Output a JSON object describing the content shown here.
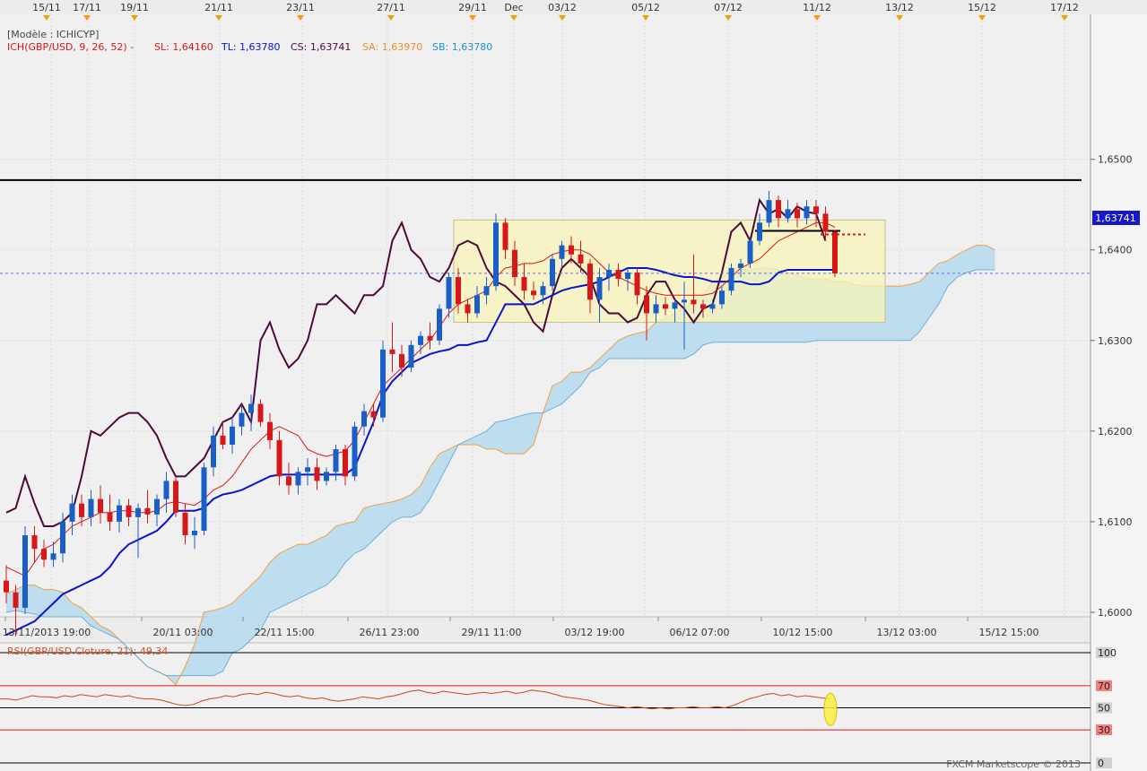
{
  "top_dates": [
    "15/11",
    "17/11",
    "19/11",
    "21/11",
    "23/11",
    "27/11",
    "29/11",
    "Dec",
    "03/12",
    "05/12",
    "07/12",
    "11/12",
    "13/12",
    "15/12",
    "17/12"
  ],
  "legend": {
    "model": "[Modèle : ICHICYP]",
    "ich": "ICH(GBP/USD, 9, 26, 52) -",
    "sl": "SL: 1,64160",
    "tl": "TL: 1,63780",
    "cs": "CS: 1,63741",
    "sa": "SA: 1,63970",
    "sb": "SB: 1,63780"
  },
  "price_label": "1,63741",
  "bottom_dates": [
    "13/11/2013 19:00",
    "20/11 03:00",
    "22/11 15:00",
    "26/11 23:00",
    "29/11 11:00",
    "03/12 19:00",
    "06/12 07:00",
    "10/12 15:00",
    "13/12 03:00",
    "15/12 15:00"
  ],
  "rsi_title": "RSI(GBP/USD.Cloture, 21): 49,34",
  "watermark": "FXCM Marketscope © 2013",
  "colors": {
    "bullish": "#1a5fc8",
    "bearish": "#d81818",
    "chikou": "#4a0a3a",
    "kijun": "#0a14c8",
    "tenkan": "#d81818",
    "span_a": "#f0a040",
    "cloud": "#b8dcef",
    "box": "#f8f4b8"
  },
  "chart_data": {
    "type": "candlestick",
    "title": "ICH(GBP/USD, 9, 26, 52)",
    "ylim": [
      1.5995,
      1.666
    ],
    "y_ticks": [
      "1,6500",
      "1,6400",
      "1,6300",
      "1,6200",
      "1,6100",
      "1,6000"
    ],
    "y_tick_values": [
      1.65,
      1.64,
      1.63,
      1.62,
      1.61,
      1.6
    ],
    "horizontal_levels": [
      1.6477,
      1.6421,
      1.63741
    ],
    "current_price": 1.63741,
    "candles": [
      {
        "o": 1.6035,
        "h": 1.6052,
        "l": 1.601,
        "c": 1.6022
      },
      {
        "o": 1.6022,
        "h": 1.603,
        "l": 1.5975,
        "c": 1.6005
      },
      {
        "o": 1.6005,
        "h": 1.6095,
        "l": 1.5998,
        "c": 1.6085
      },
      {
        "o": 1.6085,
        "h": 1.6095,
        "l": 1.6055,
        "c": 1.607
      },
      {
        "o": 1.607,
        "h": 1.608,
        "l": 1.605,
        "c": 1.6058
      },
      {
        "o": 1.6058,
        "h": 1.6078,
        "l": 1.605,
        "c": 1.6065
      },
      {
        "o": 1.6065,
        "h": 1.611,
        "l": 1.6055,
        "c": 1.61
      },
      {
        "o": 1.61,
        "h": 1.613,
        "l": 1.6085,
        "c": 1.612
      },
      {
        "o": 1.612,
        "h": 1.613,
        "l": 1.6095,
        "c": 1.6105
      },
      {
        "o": 1.6105,
        "h": 1.6135,
        "l": 1.6095,
        "c": 1.6125
      },
      {
        "o": 1.6125,
        "h": 1.614,
        "l": 1.6098,
        "c": 1.611
      },
      {
        "o": 1.611,
        "h": 1.613,
        "l": 1.609,
        "c": 1.61
      },
      {
        "o": 1.61,
        "h": 1.6125,
        "l": 1.6088,
        "c": 1.6118
      },
      {
        "o": 1.6118,
        "h": 1.6125,
        "l": 1.6095,
        "c": 1.6105
      },
      {
        "o": 1.6105,
        "h": 1.612,
        "l": 1.606,
        "c": 1.6115
      },
      {
        "o": 1.6115,
        "h": 1.6135,
        "l": 1.6098,
        "c": 1.6108
      },
      {
        "o": 1.6108,
        "h": 1.613,
        "l": 1.6095,
        "c": 1.6125
      },
      {
        "o": 1.6125,
        "h": 1.6155,
        "l": 1.611,
        "c": 1.6145
      },
      {
        "o": 1.6145,
        "h": 1.615,
        "l": 1.6105,
        "c": 1.611
      },
      {
        "o": 1.611,
        "h": 1.612,
        "l": 1.6075,
        "c": 1.6085
      },
      {
        "o": 1.6085,
        "h": 1.6105,
        "l": 1.607,
        "c": 1.609
      },
      {
        "o": 1.609,
        "h": 1.6165,
        "l": 1.6085,
        "c": 1.616
      },
      {
        "o": 1.616,
        "h": 1.6205,
        "l": 1.615,
        "c": 1.6195
      },
      {
        "o": 1.6195,
        "h": 1.621,
        "l": 1.618,
        "c": 1.6185
      },
      {
        "o": 1.6185,
        "h": 1.6215,
        "l": 1.6175,
        "c": 1.6205
      },
      {
        "o": 1.6205,
        "h": 1.623,
        "l": 1.6195,
        "c": 1.622
      },
      {
        "o": 1.622,
        "h": 1.624,
        "l": 1.62,
        "c": 1.623
      },
      {
        "o": 1.623,
        "h": 1.6235,
        "l": 1.6205,
        "c": 1.621
      },
      {
        "o": 1.621,
        "h": 1.622,
        "l": 1.618,
        "c": 1.619
      },
      {
        "o": 1.619,
        "h": 1.62,
        "l": 1.614,
        "c": 1.615
      },
      {
        "o": 1.615,
        "h": 1.6165,
        "l": 1.613,
        "c": 1.614
      },
      {
        "o": 1.614,
        "h": 1.616,
        "l": 1.613,
        "c": 1.6155
      },
      {
        "o": 1.6155,
        "h": 1.617,
        "l": 1.614,
        "c": 1.616
      },
      {
        "o": 1.616,
        "h": 1.617,
        "l": 1.6135,
        "c": 1.6145
      },
      {
        "o": 1.6145,
        "h": 1.616,
        "l": 1.614,
        "c": 1.6155
      },
      {
        "o": 1.6155,
        "h": 1.6185,
        "l": 1.6145,
        "c": 1.618
      },
      {
        "o": 1.618,
        "h": 1.6185,
        "l": 1.614,
        "c": 1.615
      },
      {
        "o": 1.615,
        "h": 1.621,
        "l": 1.6145,
        "c": 1.6205
      },
      {
        "o": 1.6205,
        "h": 1.623,
        "l": 1.6195,
        "c": 1.6222
      },
      {
        "o": 1.6222,
        "h": 1.623,
        "l": 1.6205,
        "c": 1.6215
      },
      {
        "o": 1.6215,
        "h": 1.63,
        "l": 1.621,
        "c": 1.629
      },
      {
        "o": 1.629,
        "h": 1.632,
        "l": 1.6265,
        "c": 1.6285
      },
      {
        "o": 1.6285,
        "h": 1.6295,
        "l": 1.626,
        "c": 1.627
      },
      {
        "o": 1.627,
        "h": 1.63,
        "l": 1.6265,
        "c": 1.6295
      },
      {
        "o": 1.6295,
        "h": 1.631,
        "l": 1.6285,
        "c": 1.6305
      },
      {
        "o": 1.6305,
        "h": 1.632,
        "l": 1.629,
        "c": 1.63
      },
      {
        "o": 1.63,
        "h": 1.634,
        "l": 1.6295,
        "c": 1.6335
      },
      {
        "o": 1.6335,
        "h": 1.6375,
        "l": 1.6325,
        "c": 1.637
      },
      {
        "o": 1.637,
        "h": 1.638,
        "l": 1.633,
        "c": 1.634
      },
      {
        "o": 1.634,
        "h": 1.6345,
        "l": 1.632,
        "c": 1.633
      },
      {
        "o": 1.633,
        "h": 1.636,
        "l": 1.6325,
        "c": 1.635
      },
      {
        "o": 1.635,
        "h": 1.637,
        "l": 1.634,
        "c": 1.636
      },
      {
        "o": 1.636,
        "h": 1.644,
        "l": 1.6355,
        "c": 1.643
      },
      {
        "o": 1.643,
        "h": 1.6435,
        "l": 1.639,
        "c": 1.64
      },
      {
        "o": 1.64,
        "h": 1.641,
        "l": 1.636,
        "c": 1.637
      },
      {
        "o": 1.637,
        "h": 1.6385,
        "l": 1.6345,
        "c": 1.6355
      },
      {
        "o": 1.6355,
        "h": 1.6365,
        "l": 1.6345,
        "c": 1.635
      },
      {
        "o": 1.635,
        "h": 1.6365,
        "l": 1.634,
        "c": 1.636
      },
      {
        "o": 1.636,
        "h": 1.6395,
        "l": 1.6355,
        "c": 1.639
      },
      {
        "o": 1.639,
        "h": 1.641,
        "l": 1.638,
        "c": 1.6405
      },
      {
        "o": 1.6405,
        "h": 1.6415,
        "l": 1.6385,
        "c": 1.6395
      },
      {
        "o": 1.6395,
        "h": 1.641,
        "l": 1.6375,
        "c": 1.6385
      },
      {
        "o": 1.6385,
        "h": 1.639,
        "l": 1.633,
        "c": 1.6345
      },
      {
        "o": 1.6345,
        "h": 1.638,
        "l": 1.632,
        "c": 1.637
      },
      {
        "o": 1.637,
        "h": 1.6385,
        "l": 1.6355,
        "c": 1.6378
      },
      {
        "o": 1.6378,
        "h": 1.6385,
        "l": 1.636,
        "c": 1.6368
      },
      {
        "o": 1.6368,
        "h": 1.638,
        "l": 1.6355,
        "c": 1.6375
      },
      {
        "o": 1.6375,
        "h": 1.638,
        "l": 1.634,
        "c": 1.635
      },
      {
        "o": 1.635,
        "h": 1.636,
        "l": 1.63,
        "c": 1.633
      },
      {
        "o": 1.633,
        "h": 1.635,
        "l": 1.632,
        "c": 1.634
      },
      {
        "o": 1.634,
        "h": 1.6348,
        "l": 1.6328,
        "c": 1.6335
      },
      {
        "o": 1.6335,
        "h": 1.6345,
        "l": 1.632,
        "c": 1.6342
      },
      {
        "o": 1.6342,
        "h": 1.6365,
        "l": 1.629,
        "c": 1.6345
      },
      {
        "o": 1.6345,
        "h": 1.6395,
        "l": 1.633,
        "c": 1.634
      },
      {
        "o": 1.634,
        "h": 1.6345,
        "l": 1.6325,
        "c": 1.6335
      },
      {
        "o": 1.6335,
        "h": 1.6345,
        "l": 1.633,
        "c": 1.634
      },
      {
        "o": 1.634,
        "h": 1.636,
        "l": 1.6335,
        "c": 1.6355
      },
      {
        "o": 1.6355,
        "h": 1.6385,
        "l": 1.635,
        "c": 1.638
      },
      {
        "o": 1.638,
        "h": 1.639,
        "l": 1.637,
        "c": 1.6385
      },
      {
        "o": 1.6385,
        "h": 1.6415,
        "l": 1.638,
        "c": 1.641
      },
      {
        "o": 1.641,
        "h": 1.644,
        "l": 1.6405,
        "c": 1.643
      },
      {
        "o": 1.643,
        "h": 1.6465,
        "l": 1.6425,
        "c": 1.6455
      },
      {
        "o": 1.6455,
        "h": 1.646,
        "l": 1.6425,
        "c": 1.6435
      },
      {
        "o": 1.6435,
        "h": 1.6455,
        "l": 1.643,
        "c": 1.6445
      },
      {
        "o": 1.6445,
        "h": 1.6452,
        "l": 1.6425,
        "c": 1.6435
      },
      {
        "o": 1.6435,
        "h": 1.6455,
        "l": 1.6428,
        "c": 1.6448
      },
      {
        "o": 1.6448,
        "h": 1.6455,
        "l": 1.6425,
        "c": 1.644
      },
      {
        "o": 1.644,
        "h": 1.6448,
        "l": 1.641,
        "c": 1.642
      },
      {
        "o": 1.642,
        "h": 1.6422,
        "l": 1.637,
        "c": 1.6374
      }
    ],
    "tenkan_sen": [
      1.605,
      1.6045,
      1.604,
      1.6055,
      1.607,
      1.6075,
      1.6085,
      1.6095,
      1.61,
      1.6105,
      1.611,
      1.611,
      1.6112,
      1.6112,
      1.611,
      1.611,
      1.6112,
      1.612,
      1.6122,
      1.612,
      1.6118,
      1.6125,
      1.6135,
      1.614,
      1.615,
      1.6165,
      1.618,
      1.619,
      1.62,
      1.6205,
      1.62,
      1.6195,
      1.618,
      1.6175,
      1.6172,
      1.6175,
      1.6178,
      1.619,
      1.621,
      1.623,
      1.625,
      1.626,
      1.627,
      1.628,
      1.629,
      1.63,
      1.6315,
      1.633,
      1.634,
      1.6345,
      1.635,
      1.6355,
      1.637,
      1.638,
      1.6382,
      1.6385,
      1.6385,
      1.6388,
      1.6395,
      1.6398,
      1.64,
      1.64,
      1.6395,
      1.6385,
      1.6375,
      1.637,
      1.6365,
      1.636,
      1.6355,
      1.6352,
      1.635,
      1.635,
      1.635,
      1.635,
      1.635,
      1.6352,
      1.636,
      1.637,
      1.638,
      1.6385,
      1.639,
      1.64,
      1.641,
      1.6415,
      1.642,
      1.6425,
      1.643,
      1.643,
      1.6425
    ],
    "kijun_sen": [
      1.5975,
      1.598,
      1.5985,
      1.599,
      1.6,
      1.601,
      1.602,
      1.6025,
      1.603,
      1.6035,
      1.604,
      1.605,
      1.6065,
      1.6075,
      1.608,
      1.6085,
      1.609,
      1.61,
      1.6112,
      1.6112,
      1.6112,
      1.6115,
      1.6125,
      1.613,
      1.6132,
      1.6135,
      1.614,
      1.6145,
      1.615,
      1.6152,
      1.6152,
      1.6152,
      1.6152,
      1.6152,
      1.6152,
      1.6152,
      1.6152,
      1.616,
      1.6185,
      1.621,
      1.624,
      1.6255,
      1.6265,
      1.6275,
      1.628,
      1.6285,
      1.6288,
      1.629,
      1.6295,
      1.6295,
      1.6298,
      1.63,
      1.632,
      1.634,
      1.634,
      1.634,
      1.634,
      1.6345,
      1.635,
      1.6355,
      1.6358,
      1.636,
      1.6362,
      1.6365,
      1.637,
      1.6375,
      1.638,
      1.638,
      1.638,
      1.6378,
      1.6375,
      1.6372,
      1.637,
      1.637,
      1.6368,
      1.6365,
      1.6365,
      1.6365,
      1.6365,
      1.6362,
      1.6362,
      1.6365,
      1.6375,
      1.6378,
      1.6378,
      1.6378,
      1.6378,
      1.6378,
      1.6378
    ],
    "chikou_span": [
      1.611,
      1.6115,
      1.615,
      1.612,
      1.6095,
      1.6095,
      1.61,
      1.611,
      1.615,
      1.62,
      1.6195,
      1.6205,
      1.6215,
      1.622,
      1.622,
      1.621,
      1.6195,
      1.617,
      1.615,
      1.615,
      1.616,
      1.617,
      1.619,
      1.621,
      1.6215,
      1.623,
      1.621,
      1.63,
      1.632,
      1.629,
      1.627,
      1.628,
      1.63,
      1.634,
      1.634,
      1.635,
      1.634,
      1.633,
      1.635,
      1.635,
      1.636,
      1.641,
      1.643,
      1.64,
      1.639,
      1.637,
      1.6365,
      1.638,
      1.6405,
      1.641,
      1.6405,
      1.638,
      1.6365,
      1.636,
      1.635,
      1.634,
      1.632,
      1.631,
      1.635,
      1.638,
      1.639,
      1.638,
      1.637,
      1.634,
      1.633,
      1.633,
      1.632,
      1.6325,
      1.635,
      1.6365,
      1.6365,
      1.6345,
      1.6335,
      1.632,
      1.6335,
      1.634,
      1.6375,
      1.642,
      1.643,
      1.641,
      1.6455,
      1.644,
      1.6445,
      1.6435,
      1.6448,
      1.6442,
      1.644,
      1.641
    ],
    "senkou_span_a": [
      1.602,
      1.6025,
      1.603,
      1.603,
      1.6025,
      1.6025,
      1.6022,
      1.601,
      1.6005,
      1.5995,
      1.5985,
      1.598,
      1.597,
      1.596,
      1.595,
      1.594,
      1.5935,
      1.593,
      1.592,
      1.594,
      1.5965,
      1.6,
      1.6002,
      1.6005,
      1.601,
      1.602,
      1.603,
      1.604,
      1.6055,
      1.6065,
      1.607,
      1.6075,
      1.6075,
      1.608,
      1.6085,
      1.6095,
      1.6098,
      1.61,
      1.6115,
      1.6118,
      1.612,
      1.6122,
      1.6125,
      1.613,
      1.614,
      1.616,
      1.6175,
      1.618,
      1.6185,
      1.6185,
      1.6185,
      1.618,
      1.618,
      1.6175,
      1.6175,
      1.6175,
      1.6185,
      1.622,
      1.625,
      1.6255,
      1.6265,
      1.6265,
      1.627,
      1.628,
      1.629,
      1.63,
      1.6305,
      1.6308,
      1.631,
      1.632,
      1.6325,
      1.633,
      1.6335,
      1.6345,
      1.635,
      1.6365,
      1.637,
      1.6375,
      1.6378,
      1.6378,
      1.638,
      1.638,
      1.6378,
      1.6375,
      1.6372,
      1.6368,
      1.6368,
      1.6368,
      1.6365,
      1.6365,
      1.6362,
      1.636,
      1.636,
      1.636,
      1.636,
      1.636,
      1.6362,
      1.6365,
      1.6375,
      1.6385,
      1.6388,
      1.6395,
      1.64,
      1.6405,
      1.6405,
      1.64
    ],
    "senkou_span_b": [
      1.6,
      1.6002,
      1.6,
      1.5998,
      1.5995,
      1.5995,
      1.5995,
      1.5995,
      1.5995,
      1.5985,
      1.598,
      1.5975,
      1.597,
      1.596,
      1.595,
      1.594,
      1.5935,
      1.593,
      1.593,
      1.593,
      1.593,
      1.593,
      1.593,
      1.5935,
      1.5955,
      1.596,
      1.597,
      1.598,
      1.6,
      1.6005,
      1.601,
      1.6015,
      1.602,
      1.6025,
      1.603,
      1.604,
      1.6055,
      1.6065,
      1.607,
      1.608,
      1.609,
      1.61,
      1.6105,
      1.6105,
      1.611,
      1.6125,
      1.6145,
      1.6165,
      1.6185,
      1.619,
      1.6195,
      1.62,
      1.621,
      1.6212,
      1.6215,
      1.6218,
      1.622,
      1.622,
      1.6225,
      1.623,
      1.624,
      1.625,
      1.6265,
      1.627,
      1.628,
      1.628,
      1.628,
      1.628,
      1.628,
      1.628,
      1.628,
      1.628,
      1.628,
      1.6285,
      1.6295,
      1.6298,
      1.6298,
      1.6298,
      1.6298,
      1.6298,
      1.6298,
      1.6298,
      1.6298,
      1.6298,
      1.6298,
      1.6298,
      1.63,
      1.63,
      1.63,
      1.63,
      1.63,
      1.63,
      1.63,
      1.63,
      1.63,
      1.63,
      1.63,
      1.631,
      1.6325,
      1.634,
      1.636,
      1.637,
      1.6375,
      1.6378,
      1.6378,
      1.6378
    ],
    "rsi": {
      "period": 21,
      "value": 49.34,
      "levels": [
        100,
        70,
        50,
        30,
        0
      ],
      "series": [
        58,
        58,
        57,
        59,
        61,
        60,
        60,
        59,
        61,
        60,
        62,
        61,
        60,
        62,
        61,
        60,
        61,
        59,
        58,
        58,
        57,
        55,
        53,
        52,
        53,
        56,
        58,
        59,
        61,
        60,
        62,
        63,
        62,
        64,
        63,
        61,
        60,
        61,
        59,
        58,
        59,
        57,
        56,
        57,
        58,
        60,
        59,
        58,
        60,
        61,
        63,
        65,
        66,
        64,
        63,
        65,
        64,
        63,
        62,
        63,
        64,
        63,
        64,
        65,
        63,
        64,
        66,
        65,
        64,
        62,
        60,
        59,
        58,
        57,
        55,
        53,
        52,
        51,
        50,
        51,
        50,
        49,
        50,
        49,
        50,
        50,
        51,
        50,
        50,
        51,
        50,
        52,
        55,
        58,
        60,
        62,
        63,
        61,
        62,
        60,
        61,
        60,
        59,
        58
      ]
    }
  }
}
